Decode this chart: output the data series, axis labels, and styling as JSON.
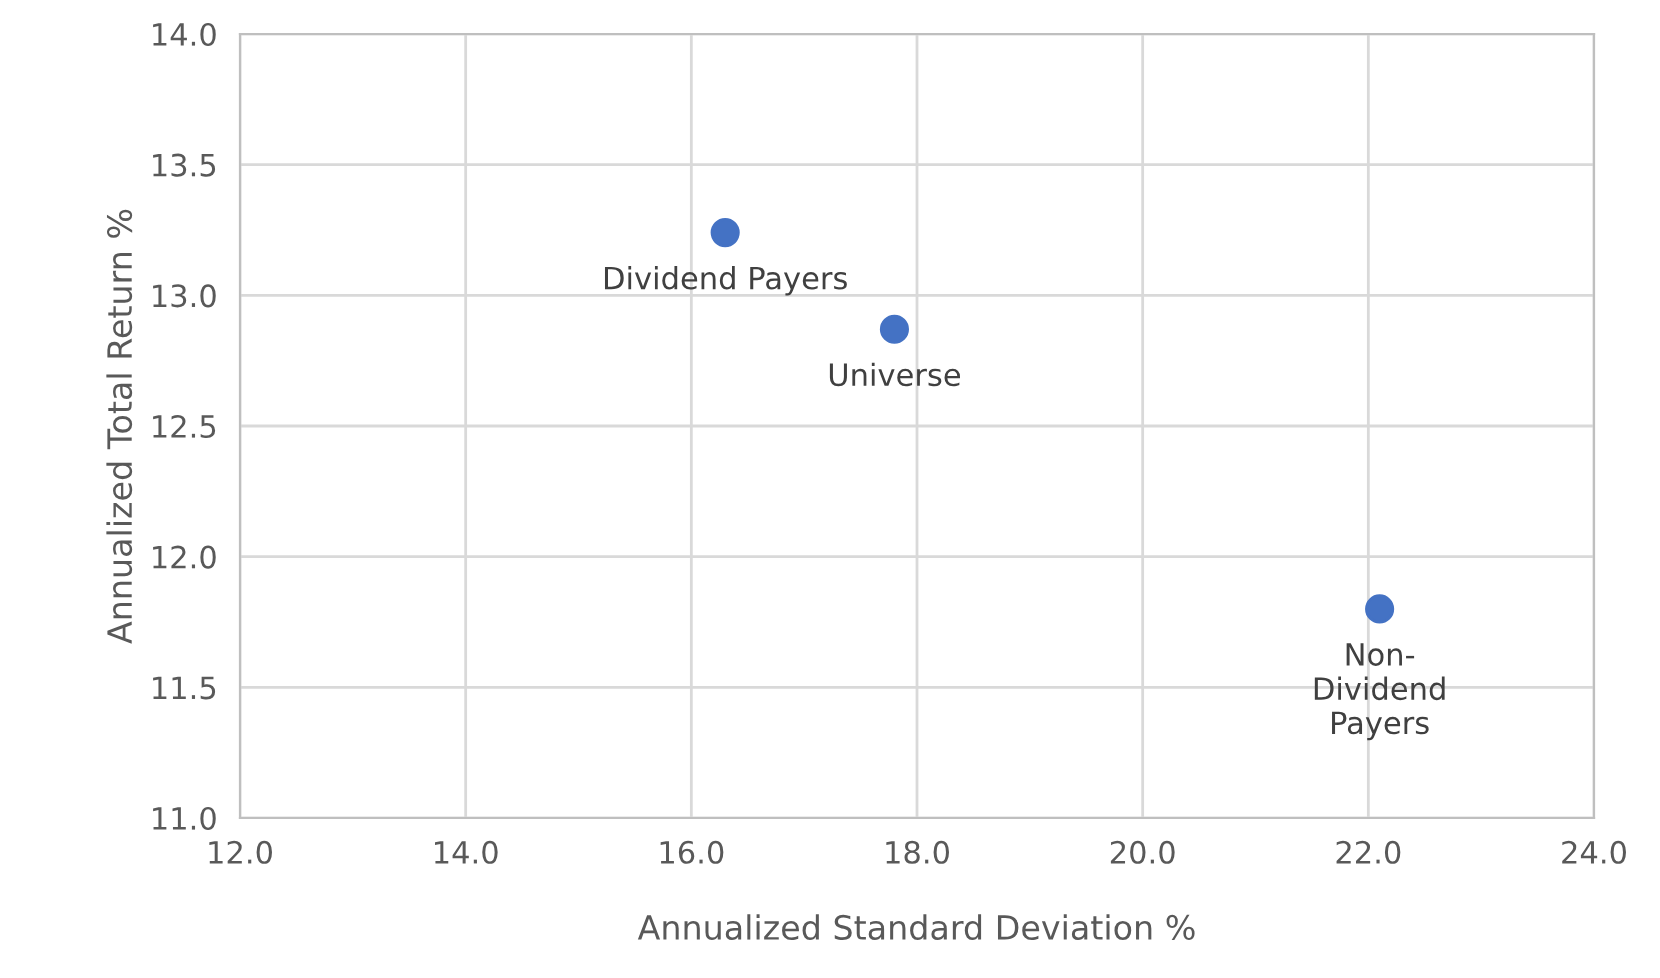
{
  "chart_data": {
    "type": "scatter",
    "xlabel": "Annualized Standard Deviation %",
    "ylabel": "Annualized Total Return %",
    "x": [
      16.3,
      17.8,
      22.1
    ],
    "series": [
      {
        "color": "#4472c4",
        "values": [
          13.24,
          12.87,
          11.8
        ]
      }
    ],
    "annotations": [
      {
        "text": "Dividend Payers",
        "x": 16.3,
        "y": 13.24
      },
      {
        "text": "Universe",
        "x": 17.8,
        "y": 12.87
      },
      {
        "text": "Non-\nDividend\nPayers",
        "x": 22.1,
        "y": 11.8
      }
    ],
    "xlim": [
      12,
      24
    ],
    "xticks": [
      {
        "value": 12,
        "label": "12.0"
      },
      {
        "value": 14,
        "label": "14.0"
      },
      {
        "value": 16,
        "label": "16.0"
      },
      {
        "value": 18,
        "label": "18.0"
      },
      {
        "value": 20,
        "label": "20.0"
      },
      {
        "value": 22,
        "label": "22.0"
      },
      {
        "value": 24,
        "label": "24.0"
      }
    ],
    "ylim": [
      11,
      14
    ],
    "yticks": [
      {
        "value": 11,
        "label": "11.0"
      },
      {
        "value": 11.5,
        "label": "11.5"
      },
      {
        "value": 12,
        "label": "12.0"
      },
      {
        "value": 12.5,
        "label": "12.5"
      },
      {
        "value": 13,
        "label": "13.0"
      },
      {
        "value": 13.5,
        "label": "13.5"
      },
      {
        "value": 14,
        "label": "14.0"
      }
    ],
    "grid": true,
    "marker": "circle",
    "legend": false
  }
}
